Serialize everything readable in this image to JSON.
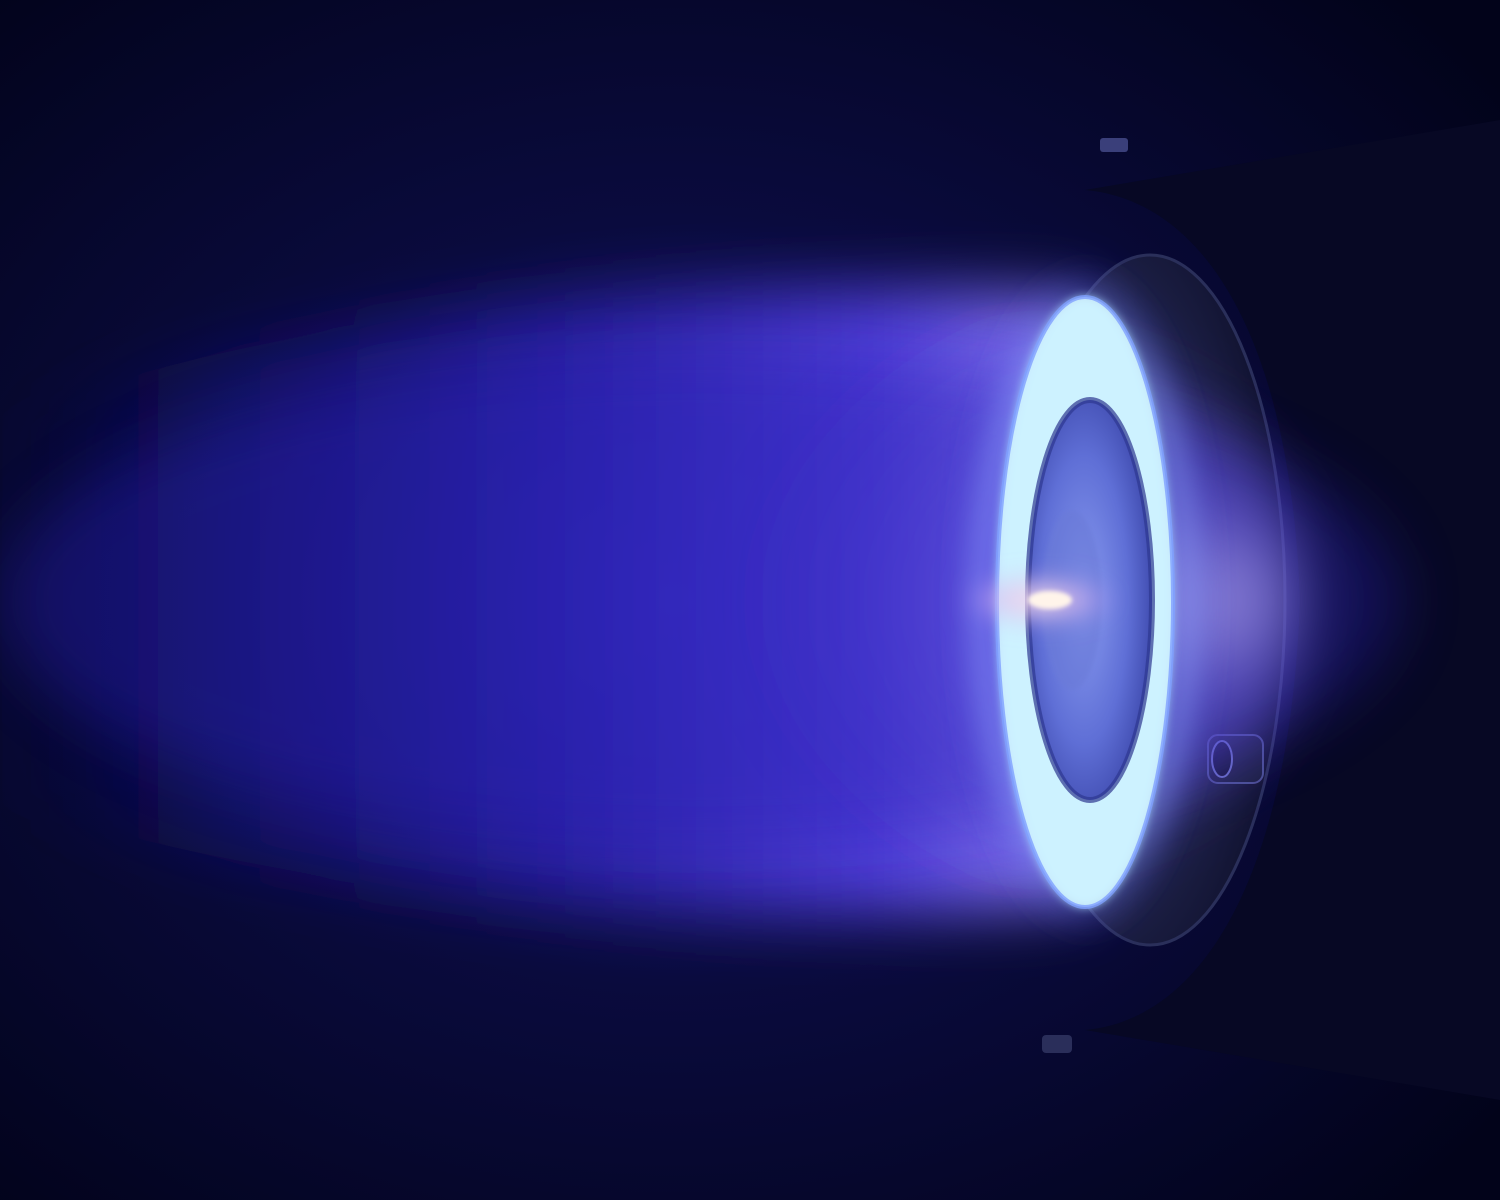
{
  "photo": {
    "subject": "plasma-thruster",
    "palette": {
      "background": "#03041a",
      "plume": "#3a2fe0",
      "ring_glow": "#a8e8ff",
      "ring_core": "#e8fbff",
      "housing": "#1a1e3a",
      "hot_spot": "#fff0e0"
    }
  }
}
